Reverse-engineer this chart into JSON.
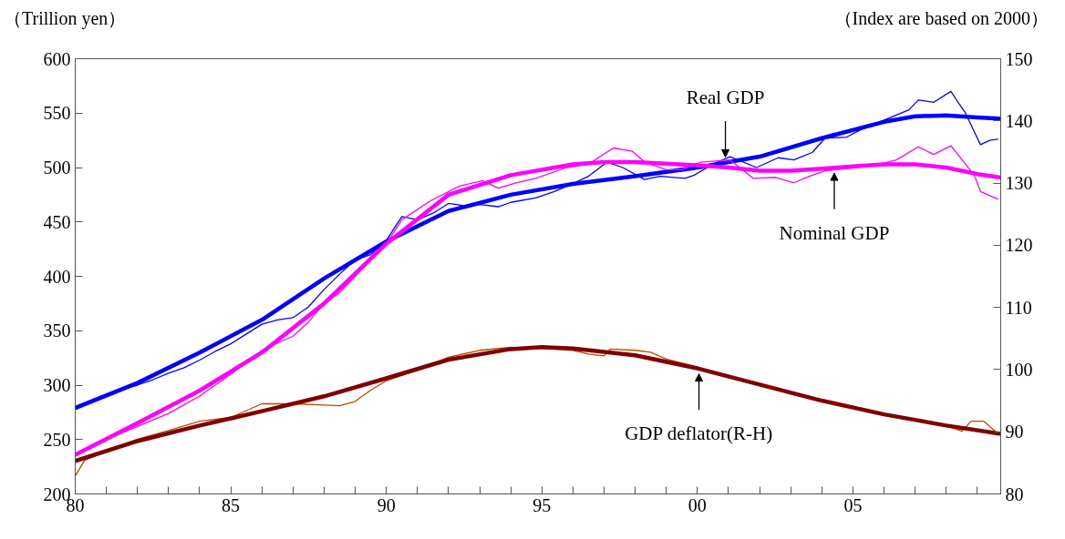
{
  "chart_data": {
    "type": "line",
    "ylabel": "（Trillion yen）",
    "y2label": "（Index are based on 2000）",
    "xlim": [
      1980,
      2009.75
    ],
    "ylim": [
      200,
      600
    ],
    "y2lim": [
      80,
      150
    ],
    "xticks": [
      {
        "value": 1980,
        "label": "80"
      },
      {
        "value": 1981,
        "label": null
      },
      {
        "value": 1982,
        "label": null
      },
      {
        "value": 1983,
        "label": null
      },
      {
        "value": 1984,
        "label": null
      },
      {
        "value": 1985,
        "label": "85"
      },
      {
        "value": 1986,
        "label": null
      },
      {
        "value": 1987,
        "label": null
      },
      {
        "value": 1988,
        "label": null
      },
      {
        "value": 1989,
        "label": null
      },
      {
        "value": 1990,
        "label": "90"
      },
      {
        "value": 1991,
        "label": null
      },
      {
        "value": 1992,
        "label": null
      },
      {
        "value": 1993,
        "label": null
      },
      {
        "value": 1994,
        "label": null
      },
      {
        "value": 1995,
        "label": "95"
      },
      {
        "value": 1996,
        "label": null
      },
      {
        "value": 1997,
        "label": null
      },
      {
        "value": 1998,
        "label": null
      },
      {
        "value": 1999,
        "label": null
      },
      {
        "value": 2000,
        "label": "00"
      },
      {
        "value": 2001,
        "label": null
      },
      {
        "value": 2002,
        "label": null
      },
      {
        "value": 2003,
        "label": null
      },
      {
        "value": 2004,
        "label": null
      },
      {
        "value": 2005,
        "label": "05"
      },
      {
        "value": 2006,
        "label": null
      },
      {
        "value": 2007,
        "label": null
      },
      {
        "value": 2008,
        "label": null
      },
      {
        "value": 2009,
        "label": null
      }
    ],
    "yticks": [
      200,
      250,
      300,
      350,
      400,
      450,
      500,
      550,
      600
    ],
    "y2ticks": [
      80,
      90,
      100,
      110,
      120,
      130,
      140,
      150
    ],
    "grid": false,
    "marker": "none",
    "line_style": "solid",
    "series": [
      {
        "color": "#0000ff",
        "x": [
          1980,
          1980.5,
          1981,
          1981.5,
          1982,
          1982.5,
          1983,
          1983.5,
          1984,
          1984.5,
          1985,
          1985.5,
          1986,
          1986.5,
          1987,
          1987.5,
          1988,
          1988.5,
          1989,
          1989.5,
          1990,
          1990.5,
          1991,
          1991.5,
          1992,
          1992.5,
          1993,
          1993.6,
          1994,
          1994.8,
          1995.4,
          1995.9,
          1996.5,
          1997.1,
          1997.6,
          1998.3,
          1998.8,
          1999.6,
          1999.9,
          2000.5,
          2001.05,
          2001.9,
          2002.6,
          2003.1,
          2003.7,
          2004.1,
          2004.8,
          2005.2,
          2005.7,
          2006.2,
          2006.8,
          2007.1,
          2007.6,
          2008.15,
          2008.4,
          2008.6,
          2009.1,
          2009.4,
          2009.65
        ],
        "values": [
          279,
          284,
          291,
          296,
          300,
          305,
          311,
          316,
          323,
          331,
          338,
          347,
          356,
          360,
          362,
          372,
          388,
          402,
          415,
          420,
          433,
          455,
          452,
          458,
          467,
          465,
          466,
          464,
          468,
          472,
          478,
          484,
          492,
          505,
          500,
          489,
          492,
          490,
          493,
          503,
          510,
          500,
          509,
          507,
          514,
          527,
          528,
          534,
          540,
          546,
          553,
          562,
          560,
          570,
          559,
          551,
          521,
          525,
          526
        ]
      },
      {
        "color": "#0000ff",
        "x": [
          1980,
          1982,
          1984,
          1986,
          1988,
          1990,
          1992,
          1994,
          1996,
          1998,
          2000,
          2002,
          2004,
          2006,
          2007,
          2008,
          2009,
          2009.7
        ],
        "values": [
          279,
          302,
          330,
          360,
          398,
          432,
          460,
          475,
          485,
          492,
          500,
          510,
          527,
          542,
          547,
          548,
          546,
          545
        ]
      },
      {
        "color": "#ff00ff",
        "x": [
          1980,
          1981,
          1982,
          1983,
          1984,
          1985,
          1986,
          1987,
          1987.5,
          1988,
          1988.5,
          1989,
          1989.5,
          1990,
          1990.5,
          1991.4,
          1992.35,
          1993.1,
          1993.6,
          1994.2,
          1994.8,
          1995.8,
          1996.5,
          1997.3,
          1997.9,
          1998.3,
          1999,
          1999.5,
          2000.1,
          2001.05,
          2001.8,
          2002.5,
          2003.1,
          2003.6,
          2004.1,
          2005.1,
          2005.7,
          2006.4,
          2007.1,
          2007.6,
          2008.15,
          2008.9,
          2009.1,
          2009.65
        ],
        "values": [
          237,
          250,
          262,
          274,
          290,
          310,
          332,
          345,
          358,
          375,
          385,
          400,
          415,
          430,
          452,
          469,
          483,
          488,
          481,
          486,
          490,
          500,
          503,
          518,
          515,
          505,
          498,
          498,
          505,
          507,
          490,
          491,
          486,
          492,
          497,
          500,
          502,
          507,
          519,
          512,
          520,
          493,
          478,
          471
        ]
      },
      {
        "color": "#ff00ff",
        "x": [
          1980,
          1982,
          1984,
          1986,
          1988,
          1990,
          1992,
          1994,
          1996,
          1997,
          1998,
          2000,
          2001,
          2002,
          2003,
          2004,
          2005,
          2006,
          2007,
          2008,
          2009,
          2009.7
        ],
        "values": [
          236,
          265,
          295,
          330,
          375,
          430,
          475,
          493,
          503,
          505,
          505,
          502,
          500,
          497,
          497,
          499,
          501,
          503,
          503,
          500,
          494,
          491
        ]
      },
      {
        "color": "#b84a00",
        "axis": "y2",
        "x": [
          1980,
          1980.3,
          1981,
          1982,
          1983,
          1984,
          1985,
          1986,
          1987,
          1988,
          1988.5,
          1989,
          1989.5,
          1990,
          1991,
          1992,
          1993,
          1994,
          1995,
          1996,
          1996.5,
          1997,
          1997.2,
          1998,
          1998.5,
          1999,
          2000,
          2001,
          2002,
          2003,
          2004,
          2005,
          2006,
          2007,
          2008,
          2008.5,
          2008.8,
          2009.2,
          2009.5,
          2009.7
        ],
        "values": [
          82.9,
          85.4,
          86.9,
          88.8,
          90.2,
          91.7,
          92.3,
          94.5,
          94.5,
          94.3,
          94.2,
          94.9,
          96.7,
          98.2,
          99.9,
          102.0,
          103.1,
          103.6,
          103.4,
          103.1,
          102.5,
          102.2,
          103.3,
          103.1,
          102.8,
          101.7,
          100.4,
          98.9,
          97.7,
          96.1,
          94.9,
          93.9,
          92.7,
          91.9,
          91.0,
          90.1,
          91.7,
          91.7,
          90.4,
          89.5
        ]
      },
      {
        "color": "#800000",
        "axis": "y2",
        "x": [
          1980,
          1982,
          1984,
          1986,
          1988,
          1990,
          1992,
          1994,
          1995,
          1996,
          1998,
          2000,
          2002,
          2004,
          2006,
          2008,
          2009.7
        ],
        "values": [
          85.3,
          88.5,
          91.0,
          93.3,
          95.7,
          98.6,
          101.6,
          103.3,
          103.6,
          103.4,
          102.3,
          100.2,
          97.6,
          95.0,
          92.8,
          91.0,
          89.7
        ]
      }
    ],
    "annotations": [
      {
        "text": "Real GDP",
        "x": 2000.9,
        "y": 505
      },
      {
        "text": "Nominal GDP",
        "x": 2004.4,
        "y": 499.5
      },
      {
        "text": "GDP deflator(R-H)",
        "x": 2000.05,
        "y": 315
      }
    ]
  }
}
